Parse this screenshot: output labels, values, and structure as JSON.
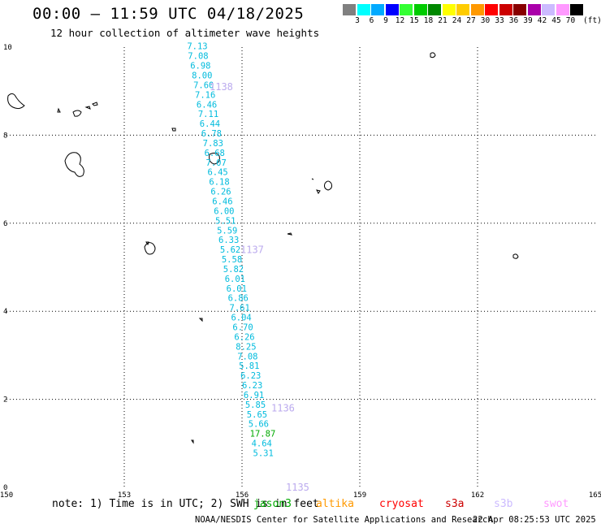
{
  "header": {
    "title": "00:00 – 11:59 UTC 04/18/2025",
    "subtitle": "12 hour collection of altimeter wave heights"
  },
  "legend": {
    "unit": "(ft)",
    "boxes": [
      {
        "color": "#808080",
        "label": "3"
      },
      {
        "color": "#00ffff",
        "label": "6"
      },
      {
        "color": "#00aaff",
        "label": "9"
      },
      {
        "color": "#0000ff",
        "label": "12"
      },
      {
        "color": "#33ff33",
        "label": "15"
      },
      {
        "color": "#00cc00",
        "label": "18"
      },
      {
        "color": "#008800",
        "label": "21"
      },
      {
        "color": "#ffff00",
        "label": "24"
      },
      {
        "color": "#ffcc00",
        "label": "27"
      },
      {
        "color": "#ff9900",
        "label": "30"
      },
      {
        "color": "#ff0000",
        "label": "33"
      },
      {
        "color": "#cc0000",
        "label": "36"
      },
      {
        "color": "#880000",
        "label": "39"
      },
      {
        "color": "#aa00aa",
        "label": "42"
      },
      {
        "color": "#ccbbff",
        "label": "45"
      },
      {
        "color": "#ff99ff",
        "label": "70"
      },
      {
        "color": "#000000",
        "label": ""
      }
    ]
  },
  "axes": {
    "x_ticks": [
      "150",
      "153",
      "156",
      "159",
      "162",
      "165"
    ],
    "y_ticks": [
      "0",
      "2",
      "4",
      "6",
      "8",
      "10"
    ],
    "lon_range": [
      150,
      165
    ],
    "lat_range": [
      0,
      10
    ]
  },
  "track": {
    "color": "#00bbdd",
    "highlight_color": "#00aa00",
    "passes": [
      {
        "label": "1138",
        "lat": 9.1
      },
      {
        "label": "1137",
        "lat": 5.4
      },
      {
        "label": "1136",
        "lat": 1.8
      },
      {
        "label": "1135",
        "lat": 0.0
      }
    ],
    "points": [
      {
        "lon": 154.6,
        "lat": 9.95,
        "swh": "7.13"
      },
      {
        "lon": 154.62,
        "lat": 9.73,
        "swh": "7.08"
      },
      {
        "lon": 154.68,
        "lat": 9.51,
        "swh": "6.98"
      },
      {
        "lon": 154.72,
        "lat": 9.29,
        "swh": "8.00"
      },
      {
        "lon": 154.76,
        "lat": 9.07,
        "swh": "7.60"
      },
      {
        "lon": 154.8,
        "lat": 8.85,
        "swh": "7.16"
      },
      {
        "lon": 154.84,
        "lat": 8.63,
        "swh": "6.46"
      },
      {
        "lon": 154.88,
        "lat": 8.41,
        "swh": "7.11"
      },
      {
        "lon": 154.92,
        "lat": 8.19,
        "swh": "6.44"
      },
      {
        "lon": 154.96,
        "lat": 7.97,
        "swh": "6.78"
      },
      {
        "lon": 155.0,
        "lat": 7.75,
        "swh": "7.83"
      },
      {
        "lon": 155.04,
        "lat": 7.53,
        "swh": "6.68"
      },
      {
        "lon": 155.08,
        "lat": 7.31,
        "swh": "7.07"
      },
      {
        "lon": 155.12,
        "lat": 7.09,
        "swh": "6.45"
      },
      {
        "lon": 155.16,
        "lat": 6.87,
        "swh": "6.18"
      },
      {
        "lon": 155.2,
        "lat": 6.65,
        "swh": "6.26"
      },
      {
        "lon": 155.24,
        "lat": 6.43,
        "swh": "6.46"
      },
      {
        "lon": 155.28,
        "lat": 6.21,
        "swh": "6.00"
      },
      {
        "lon": 155.32,
        "lat": 5.99,
        "swh": "5.51"
      },
      {
        "lon": 155.36,
        "lat": 5.77,
        "swh": "5.59"
      },
      {
        "lon": 155.4,
        "lat": 5.55,
        "swh": "6.33"
      },
      {
        "lon": 155.44,
        "lat": 5.33,
        "swh": "5.62"
      },
      {
        "lon": 155.48,
        "lat": 5.11,
        "swh": "5.58"
      },
      {
        "lon": 155.52,
        "lat": 4.89,
        "swh": "5.82"
      },
      {
        "lon": 155.56,
        "lat": 4.67,
        "swh": "6.01"
      },
      {
        "lon": 155.6,
        "lat": 4.45,
        "swh": "6.01"
      },
      {
        "lon": 155.64,
        "lat": 4.23,
        "swh": "6.86"
      },
      {
        "lon": 155.68,
        "lat": 4.01,
        "swh": "7.61"
      },
      {
        "lon": 155.72,
        "lat": 3.79,
        "swh": "6.04"
      },
      {
        "lon": 155.76,
        "lat": 3.57,
        "swh": "6.70"
      },
      {
        "lon": 155.8,
        "lat": 3.35,
        "swh": "6.26"
      },
      {
        "lon": 155.84,
        "lat": 3.13,
        "swh": "8.25"
      },
      {
        "lon": 155.88,
        "lat": 2.91,
        "swh": "7.08"
      },
      {
        "lon": 155.92,
        "lat": 2.69,
        "swh": "5.81"
      },
      {
        "lon": 155.96,
        "lat": 2.47,
        "swh": "6.23"
      },
      {
        "lon": 156.0,
        "lat": 2.25,
        "swh": "6.23"
      },
      {
        "lon": 156.04,
        "lat": 2.03,
        "swh": "6.91"
      },
      {
        "lon": 156.08,
        "lat": 1.81,
        "swh": "5.85"
      },
      {
        "lon": 156.12,
        "lat": 1.59,
        "swh": "5.65"
      },
      {
        "lon": 156.16,
        "lat": 1.37,
        "swh": "5.66"
      },
      {
        "lon": 156.2,
        "lat": 1.15,
        "swh": "17.87",
        "hl": true
      },
      {
        "lon": 156.24,
        "lat": 0.93,
        "swh": "4.64"
      },
      {
        "lon": 156.28,
        "lat": 0.71,
        "swh": "5.31"
      }
    ]
  },
  "footer": {
    "note": "note: 1) Time is in UTC; 2) SWH is in feet",
    "satellites": [
      {
        "name": "jason3",
        "color": "#00aa00"
      },
      {
        "name": "altika",
        "color": "#ff9900"
      },
      {
        "name": "cryosat",
        "color": "#ff0000"
      },
      {
        "name": "s3a",
        "color": "#cc0000"
      },
      {
        "name": "s3b",
        "color": "#ccbbff"
      },
      {
        "name": "swot",
        "color": "#ff99ff"
      }
    ],
    "credit": "NOAA/NESDIS Center for Satellite Applications and Research",
    "generated": "22 Apr 08:25:53 UTC 2025"
  }
}
